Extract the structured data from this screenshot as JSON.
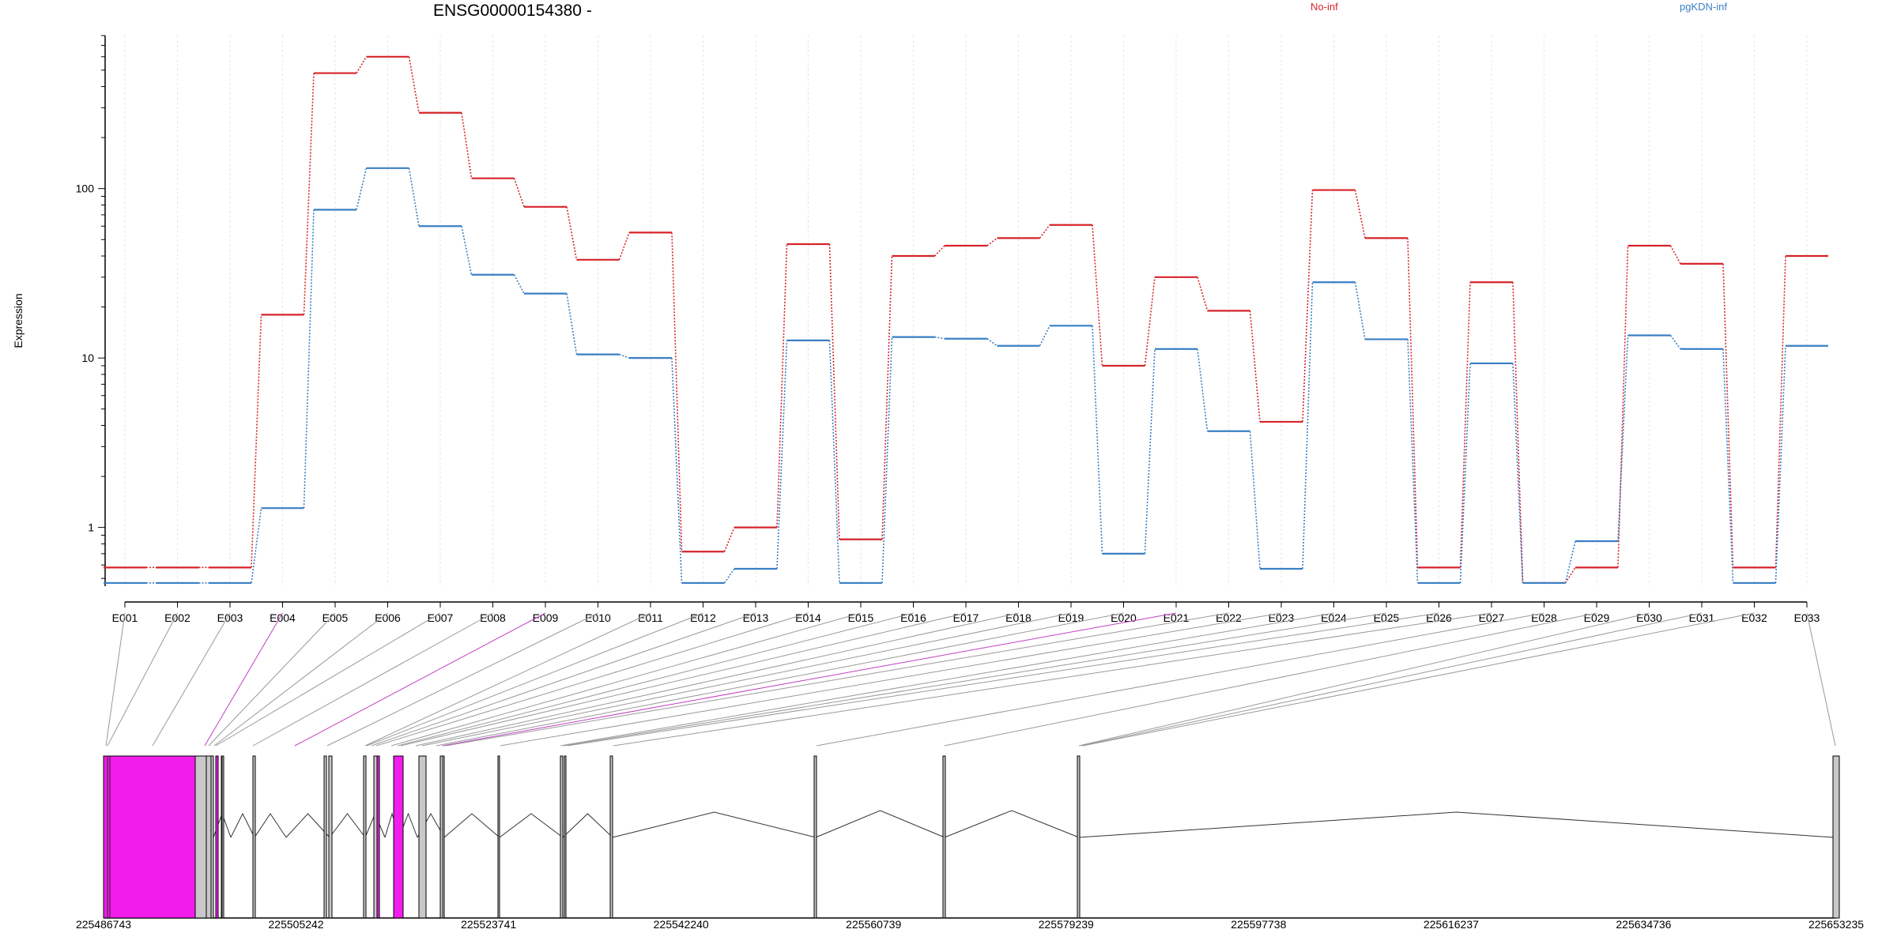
{
  "chart_data": {
    "type": "line",
    "title": "ENSG00000154380 -",
    "ylabel": "Expression",
    "yscale": "log",
    "ylim": [
      0.45,
      800
    ],
    "yticks": [
      1,
      10,
      100
    ],
    "ytick_labels": [
      "1",
      "10",
      "100"
    ],
    "categories": [
      "E001",
      "E002",
      "E003",
      "E004",
      "E005",
      "E006",
      "E007",
      "E008",
      "E009",
      "E010",
      "E011",
      "E012",
      "E013",
      "E014",
      "E015",
      "E016",
      "E017",
      "E018",
      "E019",
      "E020",
      "E021",
      "E022",
      "E023",
      "E024",
      "E025",
      "E026",
      "E027",
      "E028",
      "E029",
      "E030",
      "E031",
      "E032",
      "E033"
    ],
    "series": [
      {
        "name": "No-inf",
        "color": "#d6242a",
        "values": [
          0.58,
          0.58,
          0.58,
          18,
          480,
          600,
          280,
          115,
          78,
          38,
          55,
          0.72,
          1.0,
          47,
          0.85,
          40,
          46,
          51,
          61,
          9,
          30,
          19,
          4.2,
          98,
          51,
          0.58,
          28,
          0.47,
          0.58,
          46,
          36,
          0.58,
          40
        ]
      },
      {
        "name": "pgKDN-inf",
        "color": "#3a7fc4",
        "values": [
          0.47,
          0.47,
          0.47,
          1.3,
          75,
          132,
          60,
          31,
          24,
          10.5,
          10,
          0.47,
          0.57,
          12.7,
          0.47,
          13.3,
          13,
          11.8,
          15.5,
          0.7,
          11.3,
          3.7,
          0.57,
          28,
          12.9,
          0.47,
          9.3,
          0.47,
          0.83,
          13.6,
          11.3,
          0.47,
          11.8
        ]
      }
    ],
    "genome": {
      "tick_labels": [
        "225486743",
        "225505242",
        "225523741",
        "225542240",
        "225560739",
        "225579239",
        "225597738",
        "225616237",
        "225634736",
        "225653235"
      ],
      "range": [
        225486743,
        225653235
      ],
      "highlight_color": "#f21ceb",
      "exon_color": "#c8c8c8",
      "line_color": "#000000"
    }
  }
}
